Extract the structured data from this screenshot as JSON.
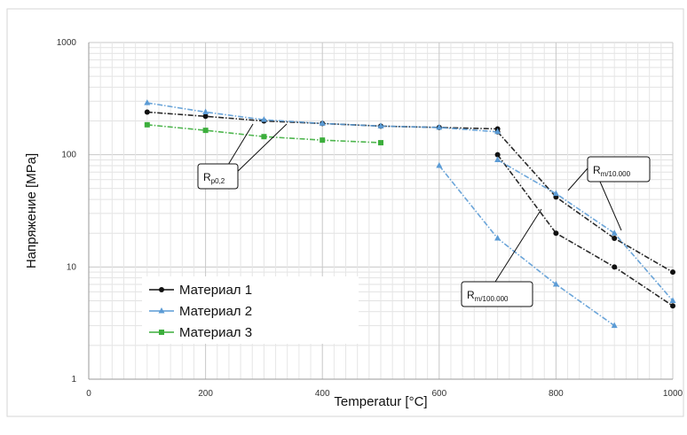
{
  "chart_data": {
    "type": "line",
    "xlabel": "Temperatur [°C]",
    "ylabel": "Напряжение [MPa]",
    "xlim": [
      0,
      1000
    ],
    "ylim": [
      1,
      1000
    ],
    "yscale": "log",
    "grid": true,
    "legend_position": "bottom-left",
    "x_ticks": [
      "0",
      "200",
      "400",
      "600",
      "800",
      "1000"
    ],
    "y_ticks": [
      "1",
      "10",
      "100",
      "1000"
    ],
    "series": [
      {
        "name": "Материал 1",
        "color": "#111111",
        "marker": "circle",
        "lines": [
          {
            "curve": "Rp0,2",
            "x": [
              100,
              200,
              300,
              400,
              500,
              600,
              700
            ],
            "y": [
              240,
              220,
              200,
              190,
              180,
              175,
              170
            ]
          },
          {
            "curve": "Rm/10.000",
            "x": [
              700,
              800,
              900,
              1000
            ],
            "y": [
              160,
              42,
              18,
              9
            ]
          },
          {
            "curve": "Rm/100.000",
            "x": [
              700,
              800,
              900,
              1000
            ],
            "y": [
              100,
              20,
              10,
              4.5
            ]
          }
        ]
      },
      {
        "name": "Материал 2",
        "color": "#5b9bd5",
        "marker": "triangle",
        "lines": [
          {
            "curve": "Rp0,2",
            "x": [
              100,
              200,
              300,
              400,
              500,
              600,
              700
            ],
            "y": [
              290,
              240,
              205,
              190,
              180,
              175,
              160
            ]
          },
          {
            "curve": "Rm/10.000",
            "x": [
              700,
              800,
              900,
              1000
            ],
            "y": [
              90,
              45,
              20,
              5
            ]
          },
          {
            "curve": "Rm/100.000",
            "x": [
              600,
              700,
              800,
              900
            ],
            "y": [
              80,
              18,
              7,
              3
            ]
          }
        ]
      },
      {
        "name": "Материал 3",
        "color": "#3cae3c",
        "marker": "square",
        "lines": [
          {
            "curve": "Rp0,2",
            "x": [
              100,
              200,
              300,
              400,
              500
            ],
            "y": [
              185,
              165,
              145,
              135,
              128
            ]
          }
        ]
      }
    ],
    "annotations": [
      {
        "main": "R",
        "sub": "p0,2"
      },
      {
        "main": "R",
        "sub": "m/10.000"
      },
      {
        "main": "R",
        "sub": "m/100.000"
      }
    ]
  }
}
